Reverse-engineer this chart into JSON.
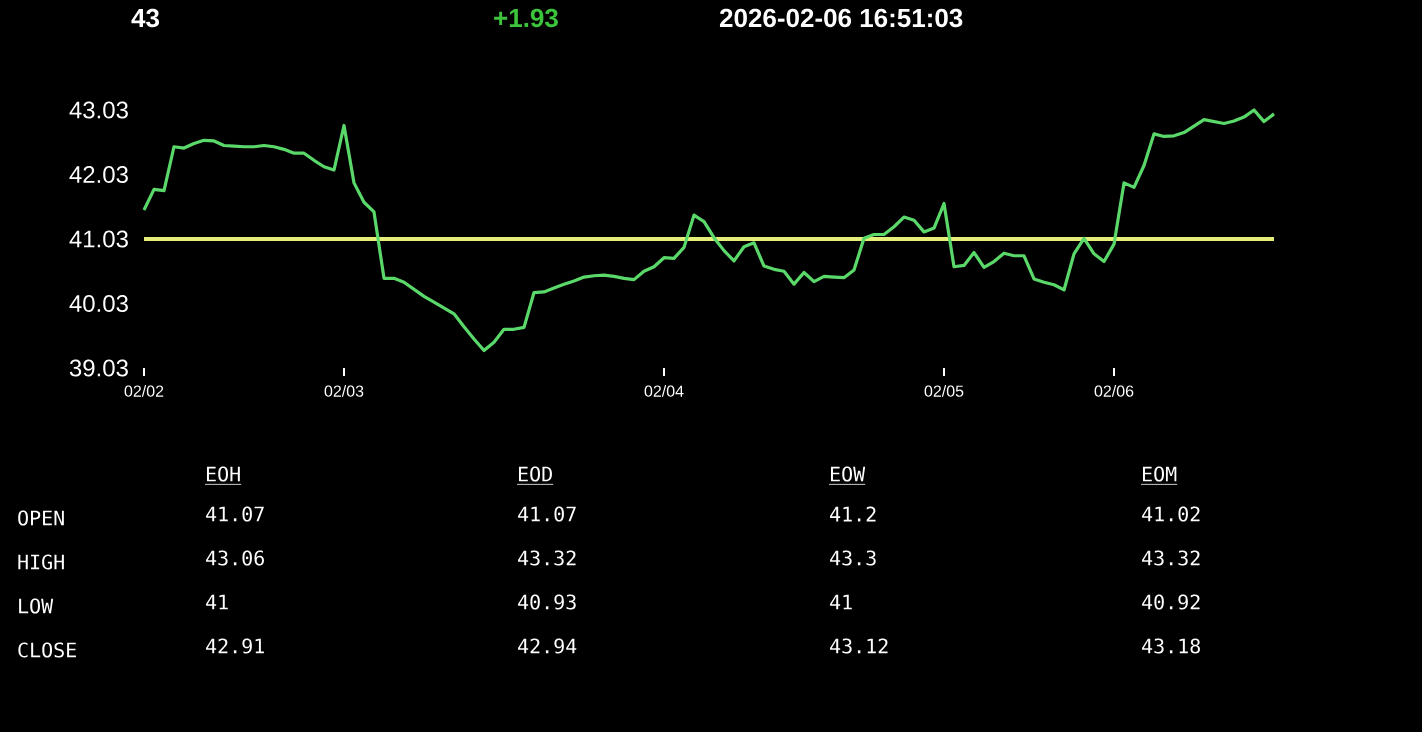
{
  "chart_data": [
    {
      "type": "line",
      "title": "43",
      "subtitle": "+1.93",
      "annotations": [
        "2026-02-06   16:51:03"
      ],
      "categories": [
        "02/02",
        null,
        null,
        null,
        null,
        null,
        null,
        null,
        null,
        null,
        null,
        null,
        null,
        null,
        null,
        null,
        null,
        null,
        null,
        null,
        "02/03",
        null,
        null,
        null,
        null,
        null,
        null,
        null,
        null,
        null,
        null,
        null,
        null,
        null,
        null,
        null,
        null,
        null,
        null,
        null,
        null,
        null,
        null,
        null,
        null,
        null,
        null,
        null,
        null,
        null,
        null,
        null,
        "02/04",
        null,
        null,
        null,
        null,
        null,
        null,
        null,
        null,
        null,
        null,
        null,
        null,
        null,
        null,
        null,
        null,
        null,
        null,
        null,
        null,
        null,
        null,
        null,
        null,
        null,
        null,
        null,
        "02/05",
        null,
        null,
        null,
        null,
        null,
        null,
        null,
        null,
        null,
        null,
        null,
        null,
        null,
        null,
        null,
        null,
        "02/06",
        null,
        null,
        null,
        null,
        null,
        null,
        null,
        null,
        null,
        null,
        null,
        null,
        null,
        null,
        null,
        null
      ],
      "values": [
        41.48,
        41.8,
        41.78,
        42.46,
        42.44,
        42.51,
        42.56,
        42.55,
        42.48,
        42.47,
        42.46,
        42.46,
        42.48,
        42.46,
        42.42,
        42.36,
        42.36,
        42.25,
        42.15,
        42.1,
        42.79,
        41.9,
        41.6,
        41.45,
        40.42,
        40.42,
        40.36,
        40.25,
        40.14,
        40.05,
        39.96,
        39.87,
        39.67,
        39.48,
        39.3,
        39.43,
        39.63,
        39.63,
        39.66,
        40.2,
        40.21,
        40.27,
        40.33,
        40.38,
        40.44,
        40.46,
        40.47,
        40.45,
        40.42,
        40.4,
        40.53,
        40.6,
        40.74,
        40.73,
        40.9,
        41.4,
        41.3,
        41.05,
        40.85,
        40.69,
        40.91,
        40.97,
        40.61,
        40.56,
        40.53,
        40.33,
        40.51,
        40.37,
        40.45,
        40.44,
        40.43,
        40.55,
        41.04,
        41.1,
        41.1,
        41.22,
        41.37,
        41.32,
        41.14,
        41.2,
        41.58,
        40.6,
        40.62,
        40.82,
        40.59,
        40.68,
        40.81,
        40.77,
        40.77,
        40.41,
        40.36,
        40.32,
        40.24,
        40.8,
        41.04,
        40.8,
        40.68,
        40.95,
        41.9,
        41.83,
        42.17,
        42.66,
        42.62,
        42.63,
        42.68,
        42.78,
        42.88,
        42.85,
        42.82,
        42.86,
        42.92,
        43.03,
        42.85,
        42.97
      ],
      "color": "#5ad86a",
      "ylim": [
        39.03,
        43.03
      ],
      "yticks": [
        39.03,
        40.03,
        41.03,
        42.03,
        43.03
      ],
      "ref_lines": [
        {
          "axis": "y",
          "value": 41.03,
          "color": "#e6ee7a"
        }
      ]
    },
    {
      "type": "other",
      "categories": [
        "EOH",
        "EOD",
        "EOW",
        "EOM"
      ],
      "y_categories": [
        "OPEN",
        "HIGH",
        "LOW",
        "CLOSE"
      ],
      "cell_labels": [
        [
          "41.07",
          "41.07",
          "41.2",
          "41.02"
        ],
        [
          "43.06",
          "43.32",
          "43.3",
          "43.32"
        ],
        [
          "41",
          "40.93",
          "41",
          "40.92"
        ],
        [
          "42.91",
          "42.94",
          "43.12",
          "43.18"
        ]
      ]
    }
  ]
}
